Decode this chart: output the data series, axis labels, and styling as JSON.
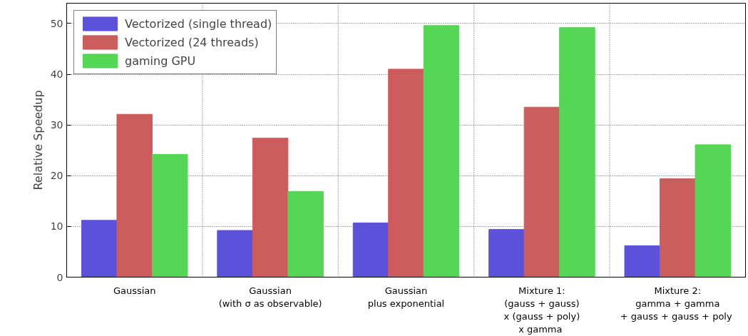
{
  "chart_data": {
    "type": "bar",
    "ylabel": "Relative Speedup",
    "categories": [
      "Gaussian",
      "Gaussian\n(with σ as observable)",
      "Gaussian\nplus exponential",
      "Mixture 1:\n(gauss + gauss)\nx (gauss + poly)\n x gamma",
      "Mixture 2:\ngamma + gamma\n + gauss + gauss + poly"
    ],
    "series": [
      {
        "name": "Vectorized (single thread)",
        "color": "#5c52d9",
        "values": [
          11.2,
          9.2,
          10.7,
          9.4,
          6.2
        ]
      },
      {
        "name": "Vectorized (24 threads)",
        "color": "#cd5c5c",
        "values": [
          32.1,
          27.4,
          41.0,
          33.5,
          19.4
        ]
      },
      {
        "name": "gaming GPU",
        "color": "#55d655",
        "values": [
          24.2,
          16.9,
          49.6,
          49.2,
          26.1
        ]
      }
    ],
    "ylim": [
      0,
      54
    ],
    "yticks": [
      0,
      10,
      20,
      30,
      40,
      50
    ],
    "grid": true,
    "legend": "top left"
  }
}
